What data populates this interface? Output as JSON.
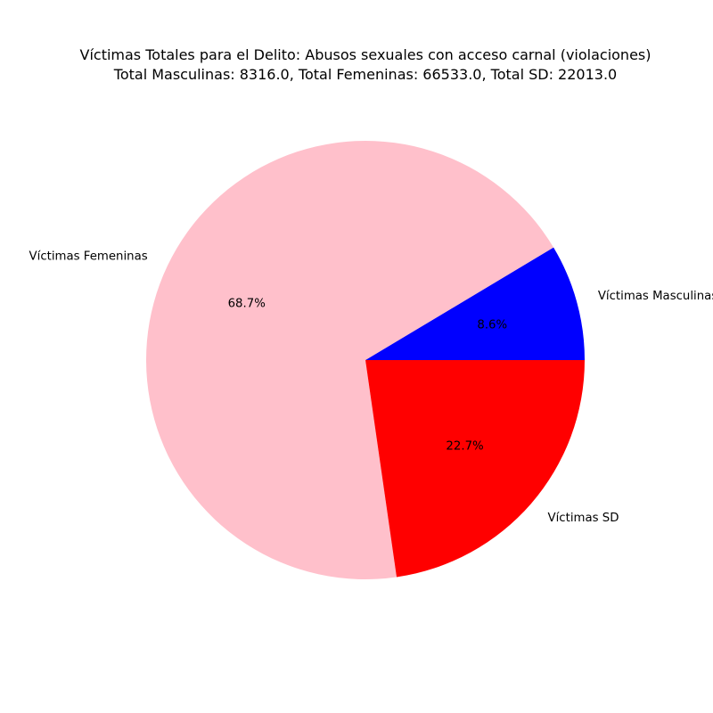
{
  "chart_data": {
    "type": "pie",
    "title": "Víctimas Totales para el Delito: Abusos sexuales con acceso carnal (violaciones)",
    "subtitle": "Total Masculinas: 8316.0, Total Femeninas: 66533.0, Total SD: 22013.0",
    "start_angle_deg": 0,
    "direction": "counterclockwise",
    "slices": [
      {
        "label": "Víctimas Masculinas",
        "value": 8316.0,
        "percent_label": "8.6%",
        "color": "#0000ff"
      },
      {
        "label": "Víctimas Femeninas",
        "value": 66533.0,
        "percent_label": "68.7%",
        "color": "#ffc0cb"
      },
      {
        "label": "Víctimas SD",
        "value": 22013.0,
        "percent_label": "22.7%",
        "color": "#ff0000"
      }
    ]
  }
}
